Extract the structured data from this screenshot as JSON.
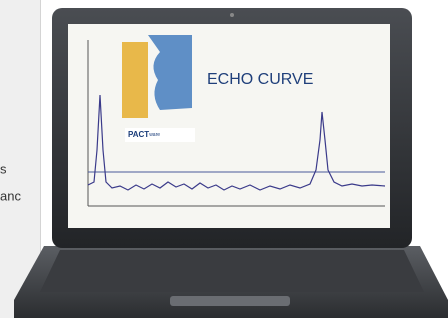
{
  "sidebar": {
    "lines": [
      "s",
      "anc"
    ]
  },
  "screen": {
    "title": "ECHO CURVE",
    "logo": "PACT",
    "logo_suffix": "ware"
  }
}
